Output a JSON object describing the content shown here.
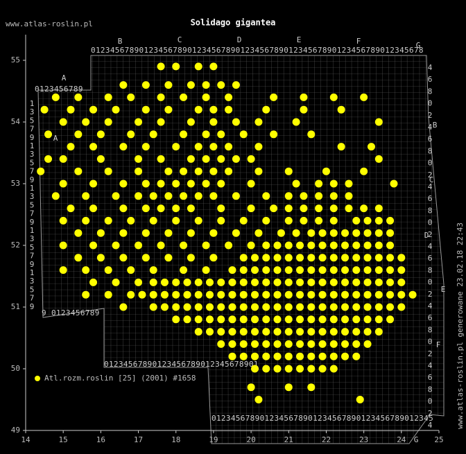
{
  "header": {
    "site": "www.atlas-roslin.pl",
    "title": "Solidago gigantea"
  },
  "map": {
    "xlim": [
      14,
      25
    ],
    "ylim": [
      49,
      55.4
    ],
    "xticks": [
      14,
      15,
      16,
      17,
      18,
      19,
      20,
      21,
      22,
      23,
      24,
      25
    ],
    "yticks": [
      49,
      50,
      51,
      52,
      53,
      54,
      55
    ],
    "point_color": "#ffff00",
    "column_letters": [
      "A",
      "B",
      "C",
      "D",
      "E",
      "F",
      "G"
    ],
    "row_letters": [
      "A",
      "B",
      "C",
      "D",
      "E",
      "F",
      "G"
    ],
    "digit_strips": [
      "0123456789",
      "012345678901234567890123456789012345678901234567890123456789012345678",
      "9 0123456789",
      "01234567890123456789012345678901",
      "0123456789012345678901234567890123456789012345"
    ],
    "left_digits": "1357913579135791357913579",
    "right_digits": "4680246802468024680246802468024",
    "points": [
      {
        "lat": 54.9,
        "lon": [
          17.6,
          18.0,
          18.6,
          19.0
        ]
      },
      {
        "lat": 54.6,
        "lon": [
          16.6,
          17.2,
          17.8,
          18.4,
          18.8,
          19.2,
          19.6
        ]
      },
      {
        "lat": 54.4,
        "lon": [
          14.8,
          15.4,
          16.2,
          16.8,
          17.6,
          18.2,
          18.8,
          19.4,
          20.6,
          21.4,
          22.2,
          23.0
        ]
      },
      {
        "lat": 54.2,
        "lon": [
          14.5,
          15.2,
          15.8,
          16.4,
          17.2,
          17.8,
          18.6,
          19.0,
          19.4,
          20.4,
          21.4,
          22.4
        ]
      },
      {
        "lat": 54.0,
        "lon": [
          15.0,
          15.6,
          16.2,
          17.0,
          17.6,
          18.4,
          19.0,
          19.6,
          20.2,
          21.2,
          23.4
        ]
      },
      {
        "lat": 53.8,
        "lon": [
          14.6,
          15.4,
          16.0,
          16.8,
          17.4,
          18.2,
          18.8,
          19.2,
          19.8,
          20.6,
          21.6
        ]
      },
      {
        "lat": 53.6,
        "lon": [
          15.2,
          15.8,
          16.6,
          17.2,
          18.0,
          18.6,
          19.0,
          19.4,
          20.2,
          22.4,
          23.2
        ]
      },
      {
        "lat": 53.4,
        "lon": [
          14.6,
          15.0,
          16.0,
          17.0,
          17.6,
          18.4,
          18.8,
          19.2,
          19.6,
          20.0,
          23.4
        ]
      },
      {
        "lat": 53.2,
        "lon": [
          14.4,
          15.4,
          16.2,
          17.0,
          17.8,
          18.2,
          18.6,
          19.0,
          19.4,
          20.2,
          21.0,
          22.0,
          23.0
        ]
      },
      {
        "lat": 53.0,
        "lon": [
          15.0,
          15.8,
          16.6,
          17.2,
          17.6,
          18.0,
          18.4,
          18.8,
          19.2,
          20.0,
          21.2,
          21.8,
          22.2,
          22.6,
          23.8
        ]
      },
      {
        "lat": 52.8,
        "lon": [
          14.8,
          15.6,
          16.4,
          17.0,
          17.4,
          17.8,
          18.2,
          18.6,
          19.0,
          19.6,
          20.4,
          21.0,
          21.4,
          21.8,
          22.2,
          22.6
        ]
      },
      {
        "lat": 52.6,
        "lon": [
          15.2,
          15.8,
          16.6,
          17.2,
          17.6,
          18.0,
          18.4,
          19.2,
          20.0,
          20.6,
          21.0,
          21.4,
          21.8,
          22.2,
          22.6,
          23.0,
          23.4
        ]
      },
      {
        "lat": 52.4,
        "lon": [
          15.0,
          15.6,
          16.2,
          16.8,
          17.4,
          18.0,
          18.6,
          19.2,
          19.8,
          20.4,
          21.0,
          21.4,
          21.8,
          22.2,
          22.8,
          23.1,
          23.4,
          23.7
        ]
      },
      {
        "lat": 52.2,
        "lon": [
          15.4,
          16.0,
          16.6,
          17.2,
          17.8,
          18.4,
          19.0,
          19.6,
          20.2,
          20.8,
          21.2,
          21.6,
          21.9,
          22.2,
          22.5,
          22.8,
          23.1,
          23.4,
          23.7
        ]
      },
      {
        "lat": 52.0,
        "lon": [
          15.0,
          15.8,
          16.4,
          17.0,
          17.6,
          18.2,
          18.8,
          19.4,
          20.0,
          20.4,
          20.7,
          21.0,
          21.3,
          21.6,
          21.9,
          22.2,
          22.5,
          22.8,
          23.1,
          23.4,
          23.7
        ]
      },
      {
        "lat": 51.8,
        "lon": [
          15.4,
          16.0,
          16.6,
          17.2,
          17.8,
          18.4,
          19.0,
          19.8,
          20.1,
          20.4,
          20.7,
          21.0,
          21.3,
          21.6,
          21.9,
          22.2,
          22.5,
          22.8,
          23.1,
          23.4,
          23.7,
          24.0
        ]
      },
      {
        "lat": 51.6,
        "lon": [
          15.0,
          15.6,
          16.2,
          16.8,
          17.4,
          18.2,
          18.8,
          19.5,
          19.8,
          20.1,
          20.4,
          20.7,
          21.0,
          21.3,
          21.6,
          21.9,
          22.2,
          22.5,
          22.8,
          23.1,
          23.4,
          23.7,
          24.0
        ]
      },
      {
        "lat": 51.4,
        "lon": [
          15.8,
          16.4,
          17.0,
          17.4,
          17.7,
          18.0,
          18.3,
          18.6,
          18.9,
          19.2,
          19.5,
          19.8,
          20.1,
          20.4,
          20.7,
          21.0,
          21.3,
          21.6,
          21.9,
          22.2,
          22.5,
          22.8,
          23.1,
          23.4,
          23.7,
          24.0
        ]
      },
      {
        "lat": 51.2,
        "lon": [
          15.6,
          16.2,
          16.8,
          17.1,
          17.4,
          17.7,
          18.0,
          18.3,
          18.6,
          18.9,
          19.2,
          19.5,
          19.8,
          20.1,
          20.4,
          20.7,
          21.0,
          21.3,
          21.6,
          21.9,
          22.2,
          22.5,
          22.8,
          23.1,
          23.4,
          23.7,
          24.0,
          24.3
        ]
      },
      {
        "lat": 51.0,
        "lon": [
          16.6,
          17.4,
          17.7,
          18.0,
          18.3,
          18.6,
          18.9,
          19.2,
          19.5,
          19.8,
          20.1,
          20.4,
          20.7,
          21.0,
          21.3,
          21.6,
          21.9,
          22.2,
          22.5,
          22.8,
          23.1,
          23.4,
          23.7,
          24.0
        ]
      },
      {
        "lat": 50.8,
        "lon": [
          18.0,
          18.3,
          18.6,
          18.9,
          19.2,
          19.5,
          19.8,
          20.1,
          20.4,
          20.7,
          21.0,
          21.3,
          21.6,
          21.9,
          22.2,
          22.5,
          22.8,
          23.1,
          23.4,
          23.7
        ]
      },
      {
        "lat": 50.6,
        "lon": [
          18.6,
          18.9,
          19.2,
          19.5,
          19.8,
          20.1,
          20.4,
          20.7,
          21.0,
          21.3,
          21.6,
          21.9,
          22.2,
          22.5,
          22.8,
          23.1,
          23.4
        ]
      },
      {
        "lat": 50.4,
        "lon": [
          19.2,
          19.5,
          19.8,
          20.1,
          20.4,
          20.7,
          21.0,
          21.3,
          21.6,
          21.9,
          22.2,
          22.5,
          22.8,
          23.1
        ]
      },
      {
        "lat": 50.2,
        "lon": [
          19.5,
          19.8,
          20.1,
          20.4,
          20.7,
          21.0,
          21.3,
          21.6,
          21.9,
          22.2,
          22.5,
          22.8
        ]
      },
      {
        "lat": 50.0,
        "lon": [
          20.1,
          20.4,
          20.7,
          21.0,
          21.3,
          21.6,
          21.9,
          22.2
        ]
      },
      {
        "lat": 49.7,
        "lon": [
          20.0,
          21.0,
          21.6
        ]
      },
      {
        "lat": 49.5,
        "lon": [
          20.2,
          22.9
        ]
      }
    ]
  },
  "legend": "Atl.rozm.roslin [25] (2001) #1658",
  "footer": "www.atlas-roslin.pl generowane 23.02.18 22:43"
}
